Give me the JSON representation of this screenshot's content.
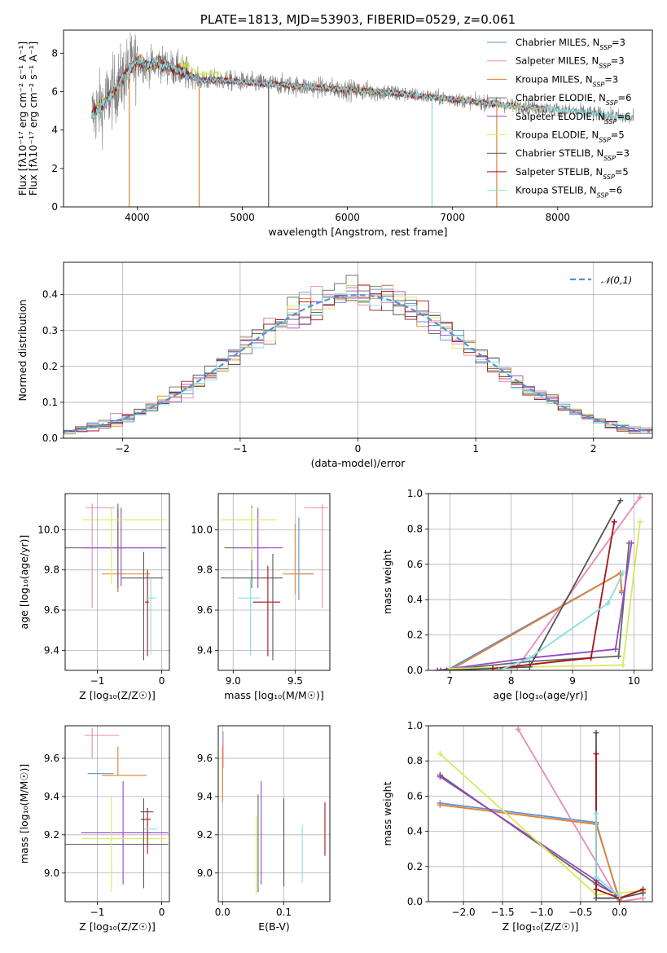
{
  "colors": {
    "chabrier_miles": "#5b8fd6",
    "salpeter_miles": "#e88ab8",
    "kroupa_miles": "#e5802e",
    "chabrier_elodie": "#606b60",
    "salpeter_elodie": "#9b45c7",
    "kroupa_elodie": "#d9e85c",
    "chabrier_stelib": "#555555",
    "salpeter_stelib": "#a51515",
    "kroupa_stelib": "#88dfe0",
    "data_gray": "#808080",
    "normal_curve": "#5a8fd6"
  },
  "chart_data": [
    {
      "id": "spectrum",
      "type": "line",
      "title": "PLATE=1813, MJD=53903, FIBERID=0529, z=0.061",
      "xlabel": "wavelength [Angstrom, rest frame]",
      "ylabel": "Flux [fλ10⁻¹⁷ erg cm⁻² s⁻¹ A⁻¹]",
      "xlim": [
        3300,
        8900
      ],
      "ylim": [
        0,
        9.2
      ],
      "xticks": [
        4000,
        5000,
        6000,
        7000,
        8000
      ],
      "yticks": [
        0,
        2,
        4,
        6,
        8
      ],
      "grid": false,
      "legend_position": "top-right",
      "legend": [
        {
          "label": "Chabrier MILES, N",
          "sub": "SSP",
          "tail": "=3",
          "color_key": "chabrier_miles"
        },
        {
          "label": "Salpeter MILES, N",
          "sub": "SSP",
          "tail": "=3",
          "color_key": "salpeter_miles"
        },
        {
          "label": "Kroupa MILES, N",
          "sub": "SSP",
          "tail": "=3",
          "color_key": "kroupa_miles"
        },
        {
          "label": "Chabrier ELODIE, N",
          "sub": "SSP",
          "tail": "=6",
          "color_key": "chabrier_elodie"
        },
        {
          "label": "Salpeter ELODIE, N",
          "sub": "SSP",
          "tail": "=6",
          "color_key": "salpeter_elodie"
        },
        {
          "label": "Kroupa ELODIE, N",
          "sub": "SSP",
          "tail": "=5",
          "color_key": "kroupa_elodie"
        },
        {
          "label": "Chabrier STELIB, N",
          "sub": "SSP",
          "tail": "=3",
          "color_key": "chabrier_stelib"
        },
        {
          "label": "Salpeter STELIB, N",
          "sub": "SSP",
          "tail": "=5",
          "color_key": "salpeter_stelib"
        },
        {
          "label": "Kroupa STELIB, N",
          "sub": "SSP",
          "tail": "=6",
          "color_key": "kroupa_stelib"
        }
      ],
      "continuum_shape": [
        [
          3570,
          4.8
        ],
        [
          3700,
          5.5
        ],
        [
          3800,
          6.2
        ],
        [
          3900,
          7.0
        ],
        [
          4000,
          7.6
        ],
        [
          4100,
          7.3
        ],
        [
          4200,
          7.5
        ],
        [
          4400,
          7.1
        ],
        [
          4600,
          6.6
        ],
        [
          4800,
          6.6
        ],
        [
          5000,
          6.5
        ],
        [
          5500,
          6.3
        ],
        [
          6000,
          6.1
        ],
        [
          6500,
          5.9
        ],
        [
          7000,
          5.6
        ],
        [
          7500,
          5.3
        ],
        [
          7900,
          5.1
        ],
        [
          8300,
          4.9
        ],
        [
          8700,
          4.6
        ]
      ]
    },
    {
      "id": "residuals",
      "type": "histogram",
      "xlabel": "(data-model)/error",
      "ylabel": "Normed distribution",
      "xlim": [
        -2.5,
        2.5
      ],
      "ylim": [
        0,
        0.49
      ],
      "xticks": [
        -2,
        -1,
        0,
        1,
        2
      ],
      "yticks": [
        0.0,
        0.1,
        0.2,
        0.3,
        0.4
      ],
      "grid": true,
      "legend_position": "top-right",
      "legend": [
        {
          "label": "𝒩(0,1)",
          "color_key": "normal_curve"
        }
      ],
      "bin_width": 0.1
    },
    {
      "id": "age-vs-Z",
      "type": "errorbar",
      "xlabel": "Z [log₁₀(Z/Z☉)]",
      "ylabel": "age  [log₁₀(age/yr)]",
      "xlim": [
        -1.5,
        0.12
      ],
      "ylim": [
        9.3,
        10.18
      ],
      "xticks": [
        -1,
        0
      ],
      "yticks": [
        9.4,
        9.6,
        9.8,
        10.0
      ],
      "grid": true,
      "points": [
        {
          "key": "chabrier_miles",
          "x": -0.68,
          "xerr": [
            0.55,
            0.75
          ],
          "y": 9.91,
          "yerr": [
            0.22,
            0.2
          ]
        },
        {
          "key": "salpeter_miles",
          "x": -1.08,
          "xerr": [
            0.1,
            0.35
          ],
          "y": 10.11,
          "yerr": [
            0.5,
            0.02
          ]
        },
        {
          "key": "kroupa_miles",
          "x": -0.68,
          "xerr": [
            0.25,
            0.5
          ],
          "y": 9.78,
          "yerr": [
            0.09,
            0.32
          ]
        },
        {
          "key": "chabrier_elodie",
          "x": -0.68,
          "xerr": [
            0.85,
            0.75
          ],
          "y": 9.91,
          "yerr": [
            0.2,
            0.22
          ]
        },
        {
          "key": "salpeter_elodie",
          "x": -0.63,
          "xerr": [
            0.6,
            0.7
          ],
          "y": 9.91,
          "yerr": [
            0.19,
            0.2
          ]
        },
        {
          "key": "kroupa_elodie",
          "x": -0.78,
          "xerr": [
            0.45,
            0.85
          ],
          "y": 10.05,
          "yerr": [
            0.32,
            0.06
          ]
        },
        {
          "key": "chabrier_stelib",
          "x": -0.28,
          "xerr": [
            0.35,
            0.3
          ],
          "y": 9.76,
          "yerr": [
            0.41,
            0.13
          ]
        },
        {
          "key": "salpeter_stelib",
          "x": -0.22,
          "xerr": [
            0.04,
            0.02
          ],
          "y": 9.64,
          "yerr": [
            0.27,
            0.16
          ]
        },
        {
          "key": "kroupa_stelib",
          "x": -0.17,
          "xerr": [
            0.08,
            0.08
          ],
          "y": 9.66,
          "yerr": [
            0.28,
            0.1
          ]
        }
      ]
    },
    {
      "id": "age-vs-mass",
      "type": "errorbar",
      "xlabel": "mass [log₁₀(M/M☉)]",
      "ylabel": "",
      "xlim": [
        8.88,
        9.78
      ],
      "ylim": [
        9.3,
        10.18
      ],
      "xticks": [
        9.0,
        9.5
      ],
      "yticks": [
        9.4,
        9.6,
        9.8,
        10.0
      ],
      "grid": true,
      "points": [
        {
          "key": "chabrier_miles",
          "x": 9.53,
          "xerr": [
            0.1,
            0.12
          ],
          "y": 9.78,
          "yerr": [
            0.13,
            0.28
          ]
        },
        {
          "key": "salpeter_miles",
          "x": 9.72,
          "xerr": [
            0.15,
            0.05
          ],
          "y": 10.11,
          "yerr": [
            0.5,
            0.02
          ]
        },
        {
          "key": "kroupa_miles",
          "x": 9.5,
          "xerr": [
            0.1,
            0.15
          ],
          "y": 9.78,
          "yerr": [
            0.1,
            0.25
          ]
        },
        {
          "key": "chabrier_elodie",
          "x": 9.15,
          "xerr": [
            0.22,
            0.13
          ],
          "y": 9.91,
          "yerr": [
            0.2,
            0.21
          ]
        },
        {
          "key": "salpeter_elodie",
          "x": 9.2,
          "xerr": [
            0.2,
            0.2
          ],
          "y": 9.91,
          "yerr": [
            0.2,
            0.2
          ]
        },
        {
          "key": "kroupa_elodie",
          "x": 9.15,
          "xerr": [
            0.25,
            0.2
          ],
          "y": 10.05,
          "yerr": [
            0.2,
            0.06
          ]
        },
        {
          "key": "chabrier_stelib",
          "x": 9.32,
          "xerr": [
            0.42,
            0.08
          ],
          "y": 9.76,
          "yerr": [
            0.41,
            0.12
          ]
        },
        {
          "key": "salpeter_stelib",
          "x": 9.28,
          "xerr": [
            0.12,
            0.1
          ],
          "y": 9.64,
          "yerr": [
            0.27,
            0.18
          ]
        },
        {
          "key": "kroupa_stelib",
          "x": 9.14,
          "xerr": [
            0.1,
            0.08
          ],
          "y": 9.66,
          "yerr": [
            0.29,
            0.1
          ]
        }
      ]
    },
    {
      "id": "massweight-vs-age",
      "type": "line",
      "xlabel": "age  [log₁₀(age/yr)]",
      "ylabel": "mass weight",
      "xlim": [
        6.65,
        10.3
      ],
      "ylim": [
        0,
        1.0
      ],
      "xticks": [
        7,
        8,
        9,
        10
      ],
      "yticks": [
        0.0,
        0.2,
        0.4,
        0.6,
        0.8,
        1.0
      ],
      "grid": true,
      "series": [
        {
          "key": "chabrier_miles",
          "x": [
            7.0,
            9.78,
            9.8
          ],
          "y": [
            0.01,
            0.55,
            0.44
          ]
        },
        {
          "key": "salpeter_miles",
          "x": [
            6.95,
            8.1,
            10.1
          ],
          "y": [
            0.0,
            0.02,
            0.98
          ]
        },
        {
          "key": "kroupa_miles",
          "x": [
            7.0,
            9.78,
            9.8
          ],
          "y": [
            0.0,
            0.55,
            0.45
          ]
        },
        {
          "key": "chabrier_elodie",
          "x": [
            6.85,
            8.3,
            9.75,
            9.92
          ],
          "y": [
            0.0,
            0.05,
            0.08,
            0.72
          ]
        },
        {
          "key": "salpeter_elodie",
          "x": [
            6.8,
            8.3,
            9.7,
            9.96
          ],
          "y": [
            0.0,
            0.07,
            0.12,
            0.72
          ]
        },
        {
          "key": "kroupa_elodie",
          "x": [
            7.0,
            9.82,
            10.1
          ],
          "y": [
            0.01,
            0.03,
            0.84
          ]
        },
        {
          "key": "chabrier_stelib",
          "x": [
            6.95,
            8.3,
            9.78
          ],
          "y": [
            0.0,
            0.02,
            0.96
          ]
        },
        {
          "key": "salpeter_stelib",
          "x": [
            7.7,
            9.3,
            9.68
          ],
          "y": [
            0.01,
            0.07,
            0.84
          ]
        },
        {
          "key": "kroupa_stelib",
          "x": [
            7.8,
            8.3,
            9.58,
            9.82
          ],
          "y": [
            0.0,
            0.07,
            0.38,
            0.55
          ]
        }
      ]
    },
    {
      "id": "mass-vs-Z",
      "type": "errorbar",
      "xlabel": "Z [log₁₀(Z/Z☉)]",
      "ylabel": "mass [log₁₀(M/M☉)]",
      "xlim": [
        -1.5,
        0.12
      ],
      "ylim": [
        8.85,
        9.77
      ],
      "xticks": [
        -1,
        0
      ],
      "yticks": [
        9.0,
        9.2,
        9.4,
        9.6
      ],
      "grid": true,
      "points": [
        {
          "key": "chabrier_miles",
          "x": -0.95,
          "xerr": [
            0.2,
            0.2
          ],
          "y": 9.52,
          "yerr": [
            0.0,
            0.0
          ]
        },
        {
          "key": "salpeter_miles",
          "x": -1.08,
          "xerr": [
            0.12,
            0.42
          ],
          "y": 9.72,
          "yerr": [
            0.12,
            0.04
          ]
        },
        {
          "key": "kroupa_miles",
          "x": -0.68,
          "xerr": [
            0.25,
            0.45
          ],
          "y": 9.51,
          "yerr": [
            0.0,
            0.15
          ]
        },
        {
          "key": "chabrier_elodie",
          "x": -0.65,
          "xerr": [
            0.85,
            0.75
          ],
          "y": 9.15,
          "yerr": [
            0.0,
            0.0
          ]
        },
        {
          "key": "salpeter_elodie",
          "x": -0.6,
          "xerr": [
            0.65,
            0.7
          ],
          "y": 9.21,
          "yerr": [
            0.27,
            0.27
          ]
        },
        {
          "key": "kroupa_elodie",
          "x": -0.78,
          "xerr": [
            0.45,
            0.85
          ],
          "y": 9.18,
          "yerr": [
            0.28,
            0.22
          ]
        },
        {
          "key": "chabrier_stelib",
          "x": -0.28,
          "xerr": [
            0.05,
            0.15
          ],
          "y": 9.32,
          "yerr": [
            0.4,
            0.07
          ]
        },
        {
          "key": "salpeter_stelib",
          "x": -0.22,
          "xerr": [
            0.1,
            0.05
          ],
          "y": 9.28,
          "yerr": [
            0.18,
            0.06
          ]
        },
        {
          "key": "kroupa_stelib",
          "x": -0.17,
          "xerr": [
            0.1,
            0.1
          ],
          "y": 9.23,
          "yerr": [
            0.0,
            0.0
          ]
        }
      ]
    },
    {
      "id": "mass-vs-EBV",
      "type": "errorbar",
      "xlabel": "E(B-V)",
      "ylabel": "",
      "xlim": [
        -0.007,
        0.175
      ],
      "ylim": [
        8.85,
        9.77
      ],
      "xticks": [
        0.0,
        0.1
      ],
      "yticks": [
        9.0,
        9.2,
        9.4,
        9.6
      ],
      "grid": true,
      "points": [
        {
          "key": "salpeter_miles",
          "x": 0.001,
          "xerr": [
            0.0,
            0.0
          ],
          "y": 9.6,
          "yerr": [
            0.05,
            0.14
          ]
        },
        {
          "key": "kroupa_miles",
          "x": 0.0,
          "xerr": [
            0.0,
            0.0
          ],
          "y": 9.52,
          "yerr": [
            0.15,
            0.14
          ]
        },
        {
          "key": "chabrier_elodie",
          "x": 0.058,
          "xerr": [
            0.0,
            0.0
          ],
          "y": 9.15,
          "yerr": [
            0.25,
            0.26
          ]
        },
        {
          "key": "salpeter_elodie",
          "x": 0.063,
          "xerr": [
            0.0,
            0.0
          ],
          "y": 9.21,
          "yerr": [
            0.27,
            0.27
          ]
        },
        {
          "key": "kroupa_elodie",
          "x": 0.055,
          "xerr": [
            0.0,
            0.0
          ],
          "y": 9.15,
          "yerr": [
            0.26,
            0.15
          ]
        },
        {
          "key": "chabrier_stelib",
          "x": 0.1,
          "xerr": [
            0.0,
            0.0
          ],
          "y": 9.16,
          "yerr": [
            0.23,
            0.23
          ]
        },
        {
          "key": "salpeter_stelib",
          "x": 0.167,
          "xerr": [
            0.0,
            0.0
          ],
          "y": 9.23,
          "yerr": [
            0.14,
            0.14
          ]
        },
        {
          "key": "kroupa_stelib",
          "x": 0.13,
          "xerr": [
            0.0,
            0.0
          ],
          "y": 9.1,
          "yerr": [
            0.15,
            0.15
          ]
        }
      ]
    },
    {
      "id": "massweight-vs-Z",
      "type": "line",
      "xlabel": "Z [log₁₀(Z/Z☉)]",
      "ylabel": "mass weight",
      "xlim": [
        -2.45,
        0.42
      ],
      "ylim": [
        0,
        1.0
      ],
      "xticks": [
        -2.0,
        -1.5,
        -1.0,
        -0.5,
        0.0
      ],
      "yticks": [
        0.0,
        0.2,
        0.4,
        0.6,
        0.8,
        1.0
      ],
      "grid": true,
      "series": [
        {
          "key": "chabrier_miles",
          "x": [
            -2.3,
            -0.3,
            0.0
          ],
          "y": [
            0.56,
            0.45,
            0.0
          ]
        },
        {
          "key": "salpeter_miles",
          "x": [
            -1.3,
            0.0,
            0.3
          ],
          "y": [
            0.98,
            0.0,
            0.02
          ]
        },
        {
          "key": "kroupa_miles",
          "x": [
            -2.3,
            -0.3,
            0.0
          ],
          "y": [
            0.55,
            0.44,
            0.01
          ]
        },
        {
          "key": "chabrier_elodie",
          "x": [
            -2.3,
            -0.3,
            0.0
          ],
          "y": [
            0.72,
            0.1,
            0.03
          ]
        },
        {
          "key": "salpeter_elodie",
          "x": [
            -2.3,
            -0.3,
            0.0
          ],
          "y": [
            0.71,
            0.12,
            0.02
          ]
        },
        {
          "key": "kroupa_elodie",
          "x": [
            -2.3,
            -0.3,
            0.3
          ],
          "y": [
            0.84,
            0.04,
            0.06
          ]
        },
        {
          "key": "chabrier_stelib",
          "x": [
            -0.3,
            -0.3,
            0.0,
            0.3
          ],
          "y": [
            0.96,
            0.02,
            0.02,
            0.05
          ]
        },
        {
          "key": "salpeter_stelib",
          "x": [
            -0.3,
            -0.3,
            0.0,
            0.3
          ],
          "y": [
            0.84,
            0.07,
            0.02,
            0.07
          ]
        },
        {
          "key": "kroupa_stelib",
          "x": [
            -0.3,
            -0.3,
            0.0
          ],
          "y": [
            0.5,
            0.14,
            0.03
          ]
        }
      ]
    }
  ]
}
